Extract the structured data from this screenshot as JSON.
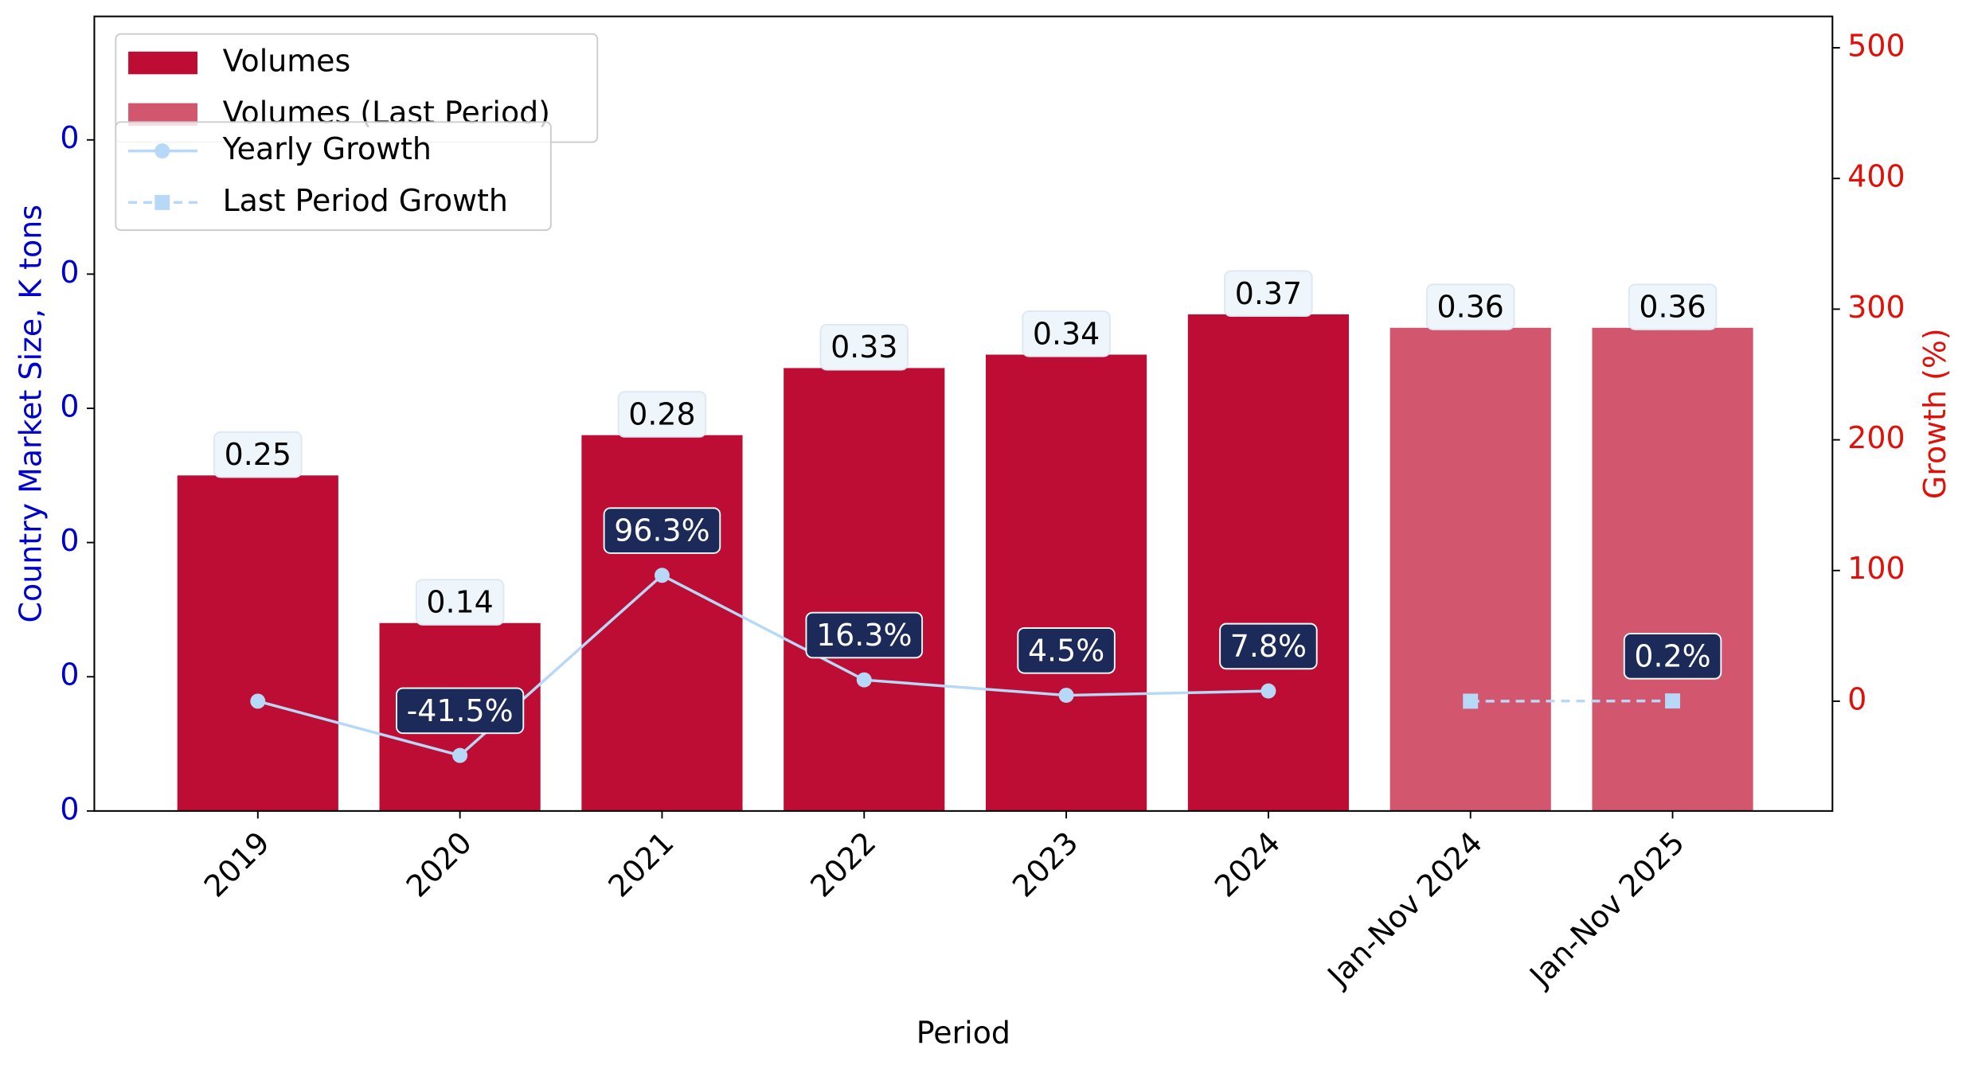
{
  "chart_data": {
    "type": "bar",
    "x_label": "Period",
    "y_label": "Country Market Size, K tons",
    "y2_label": "Growth (%)",
    "categories": [
      "2019",
      "2020",
      "2021",
      "2022",
      "2023",
      "2024",
      "Jan-Nov 2024",
      "Jan-Nov 2025"
    ],
    "series": [
      {
        "name": "Volumes",
        "kind": "bar",
        "color": "#be0d34",
        "values": [
          0.25,
          0.14,
          0.28,
          0.33,
          0.34,
          0.37,
          null,
          null
        ]
      },
      {
        "name": "Volumes (Last Period)",
        "kind": "bar",
        "color": "#d2566e",
        "values": [
          null,
          null,
          null,
          null,
          null,
          null,
          0.36,
          0.36
        ]
      },
      {
        "name": "Yearly Growth",
        "kind": "line",
        "axis": "y2",
        "color": "#b8d8f8",
        "linestyle": "solid",
        "marker": "circle",
        "values": [
          0,
          -41.5,
          96.3,
          16.3,
          4.5,
          7.8,
          null,
          null
        ],
        "value_labels": [
          null,
          "-41.5%",
          "96.3%",
          "16.3%",
          "4.5%",
          "7.8%",
          null,
          null
        ]
      },
      {
        "name": "Last Period Growth",
        "kind": "line",
        "axis": "y2",
        "color": "#b8d8f8",
        "linestyle": "dashed",
        "marker": "square",
        "values": [
          null,
          null,
          null,
          null,
          null,
          null,
          0,
          0.2
        ],
        "value_labels": [
          null,
          null,
          null,
          null,
          null,
          null,
          null,
          "0.2%"
        ]
      }
    ],
    "ylim": [
      0,
      0.592
    ],
    "yticks": [
      0,
      {
        "value": 0.1,
        "label": "0"
      },
      {
        "value": 0.2,
        "label": "0"
      },
      {
        "value": 0.3,
        "label": "0"
      },
      {
        "value": 0.4,
        "label": "0"
      },
      {
        "value": 0.5,
        "label": "0"
      }
    ],
    "y2lim": [
      -84,
      524
    ],
    "y2ticks": [
      0,
      100,
      200,
      300,
      400,
      500
    ],
    "y_label_color": "#0000cc",
    "y2_label_color": "#e0100a"
  }
}
